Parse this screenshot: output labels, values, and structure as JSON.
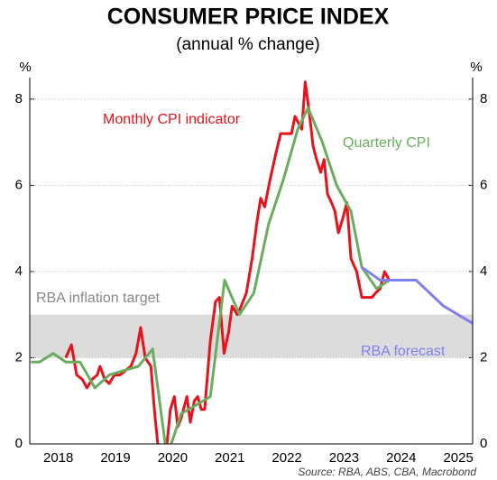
{
  "chart_data": {
    "type": "line",
    "title": "CONSUMER PRICE INDEX",
    "subtitle": "(annual % change)",
    "y_unit": "%",
    "source": "Source: RBA, ABS, CBA, Macrobond",
    "xlim": [
      2018,
      2025.75
    ],
    "xticks": [
      {
        "value": 2018.5,
        "label": "2018"
      },
      {
        "value": 2019.5,
        "label": "2019"
      },
      {
        "value": 2020.5,
        "label": "2020"
      },
      {
        "value": 2021.5,
        "label": "2021"
      },
      {
        "value": 2022.5,
        "label": "2022"
      },
      {
        "value": 2023.5,
        "label": "2023"
      },
      {
        "value": 2024.5,
        "label": "2024"
      },
      {
        "value": 2025.5,
        "label": "2025"
      }
    ],
    "ylim": [
      0,
      8.5
    ],
    "yticks": [
      0,
      2,
      4,
      6,
      8
    ],
    "grid": true,
    "target_band": {
      "label": "RBA inflation target",
      "range": [
        2,
        3
      ],
      "color": "#dcdcdc"
    },
    "series": [
      {
        "name": "Monthly CPI indicator",
        "color": "#e8121a",
        "x": [
          2018.63,
          2018.73,
          2018.82,
          2018.92,
          2019.0,
          2019.09,
          2019.18,
          2019.23,
          2019.31,
          2019.39,
          2019.48,
          2019.58,
          2019.67,
          2019.77,
          2019.86,
          2019.94,
          2020.02,
          2020.12,
          2020.18,
          2020.24,
          2020.34,
          2020.4,
          2020.46,
          2020.53,
          2020.59,
          2020.65,
          2020.75,
          2020.81,
          2020.88,
          2020.94,
          2021.0,
          2021.06,
          2021.16,
          2021.25,
          2021.32,
          2021.4,
          2021.48,
          2021.54,
          2021.63,
          2021.7,
          2021.79,
          2021.89,
          2021.98,
          2022.04,
          2022.11,
          2022.2,
          2022.3,
          2022.39,
          2022.49,
          2022.58,
          2022.64,
          2022.76,
          2022.82,
          2022.88,
          2022.96,
          2023.02,
          2023.09,
          2023.15,
          2023.21,
          2023.28,
          2023.34,
          2023.4,
          2023.47,
          2023.55,
          2023.62,
          2023.72,
          2023.81,
          2023.89,
          2023.99,
          2024.05,
          2024.13,
          2024.21,
          2024.29
        ],
        "values": [
          2.0,
          2.3,
          1.6,
          1.5,
          1.3,
          1.5,
          1.6,
          1.8,
          1.5,
          1.4,
          1.6,
          1.6,
          1.7,
          1.8,
          2.1,
          2.7,
          2.0,
          1.8,
          0.8,
          0.0,
          -0.3,
          0.0,
          0.8,
          1.1,
          0.4,
          0.6,
          1.1,
          0.5,
          1.0,
          1.1,
          0.8,
          0.8,
          2.4,
          3.3,
          3.4,
          2.1,
          2.6,
          3.2,
          3.0,
          3.2,
          3.5,
          4.3,
          5.2,
          5.7,
          5.5,
          6.1,
          6.7,
          7.2,
          7.2,
          7.2,
          7.6,
          7.3,
          8.4,
          7.8,
          6.9,
          6.6,
          6.3,
          6.6,
          5.8,
          5.6,
          5.4,
          4.9,
          5.2,
          5.6,
          4.3,
          4.0,
          3.4,
          3.4,
          3.4,
          3.5,
          3.6,
          4.0,
          3.8
        ]
      },
      {
        "name": "Quarterly CPI",
        "color": "#6aad5f",
        "x": [
          2018.02,
          2018.17,
          2018.41,
          2018.63,
          2018.88,
          2019.14,
          2019.39,
          2019.64,
          2019.9,
          2020.15,
          2020.4,
          2020.65,
          2020.91,
          2021.16,
          2021.41,
          2021.67,
          2021.92,
          2022.18,
          2022.43,
          2022.69,
          2022.87,
          2023.12,
          2023.37,
          2023.62,
          2023.81,
          2024.07,
          2024.29
        ],
        "values": [
          1.9,
          1.9,
          2.1,
          1.9,
          1.9,
          1.3,
          1.6,
          1.7,
          1.8,
          2.2,
          -0.3,
          0.7,
          0.9,
          1.1,
          3.8,
          3.0,
          3.5,
          5.1,
          6.1,
          7.3,
          7.8,
          7.0,
          6.0,
          5.4,
          4.1,
          3.6,
          3.8
        ]
      },
      {
        "name": "RBA forecast",
        "color": "#8080ee",
        "x": [
          2023.81,
          2024.13,
          2024.76,
          2025.24,
          2025.75
        ],
        "values": [
          4.1,
          3.8,
          3.8,
          3.2,
          2.8
        ]
      }
    ]
  }
}
